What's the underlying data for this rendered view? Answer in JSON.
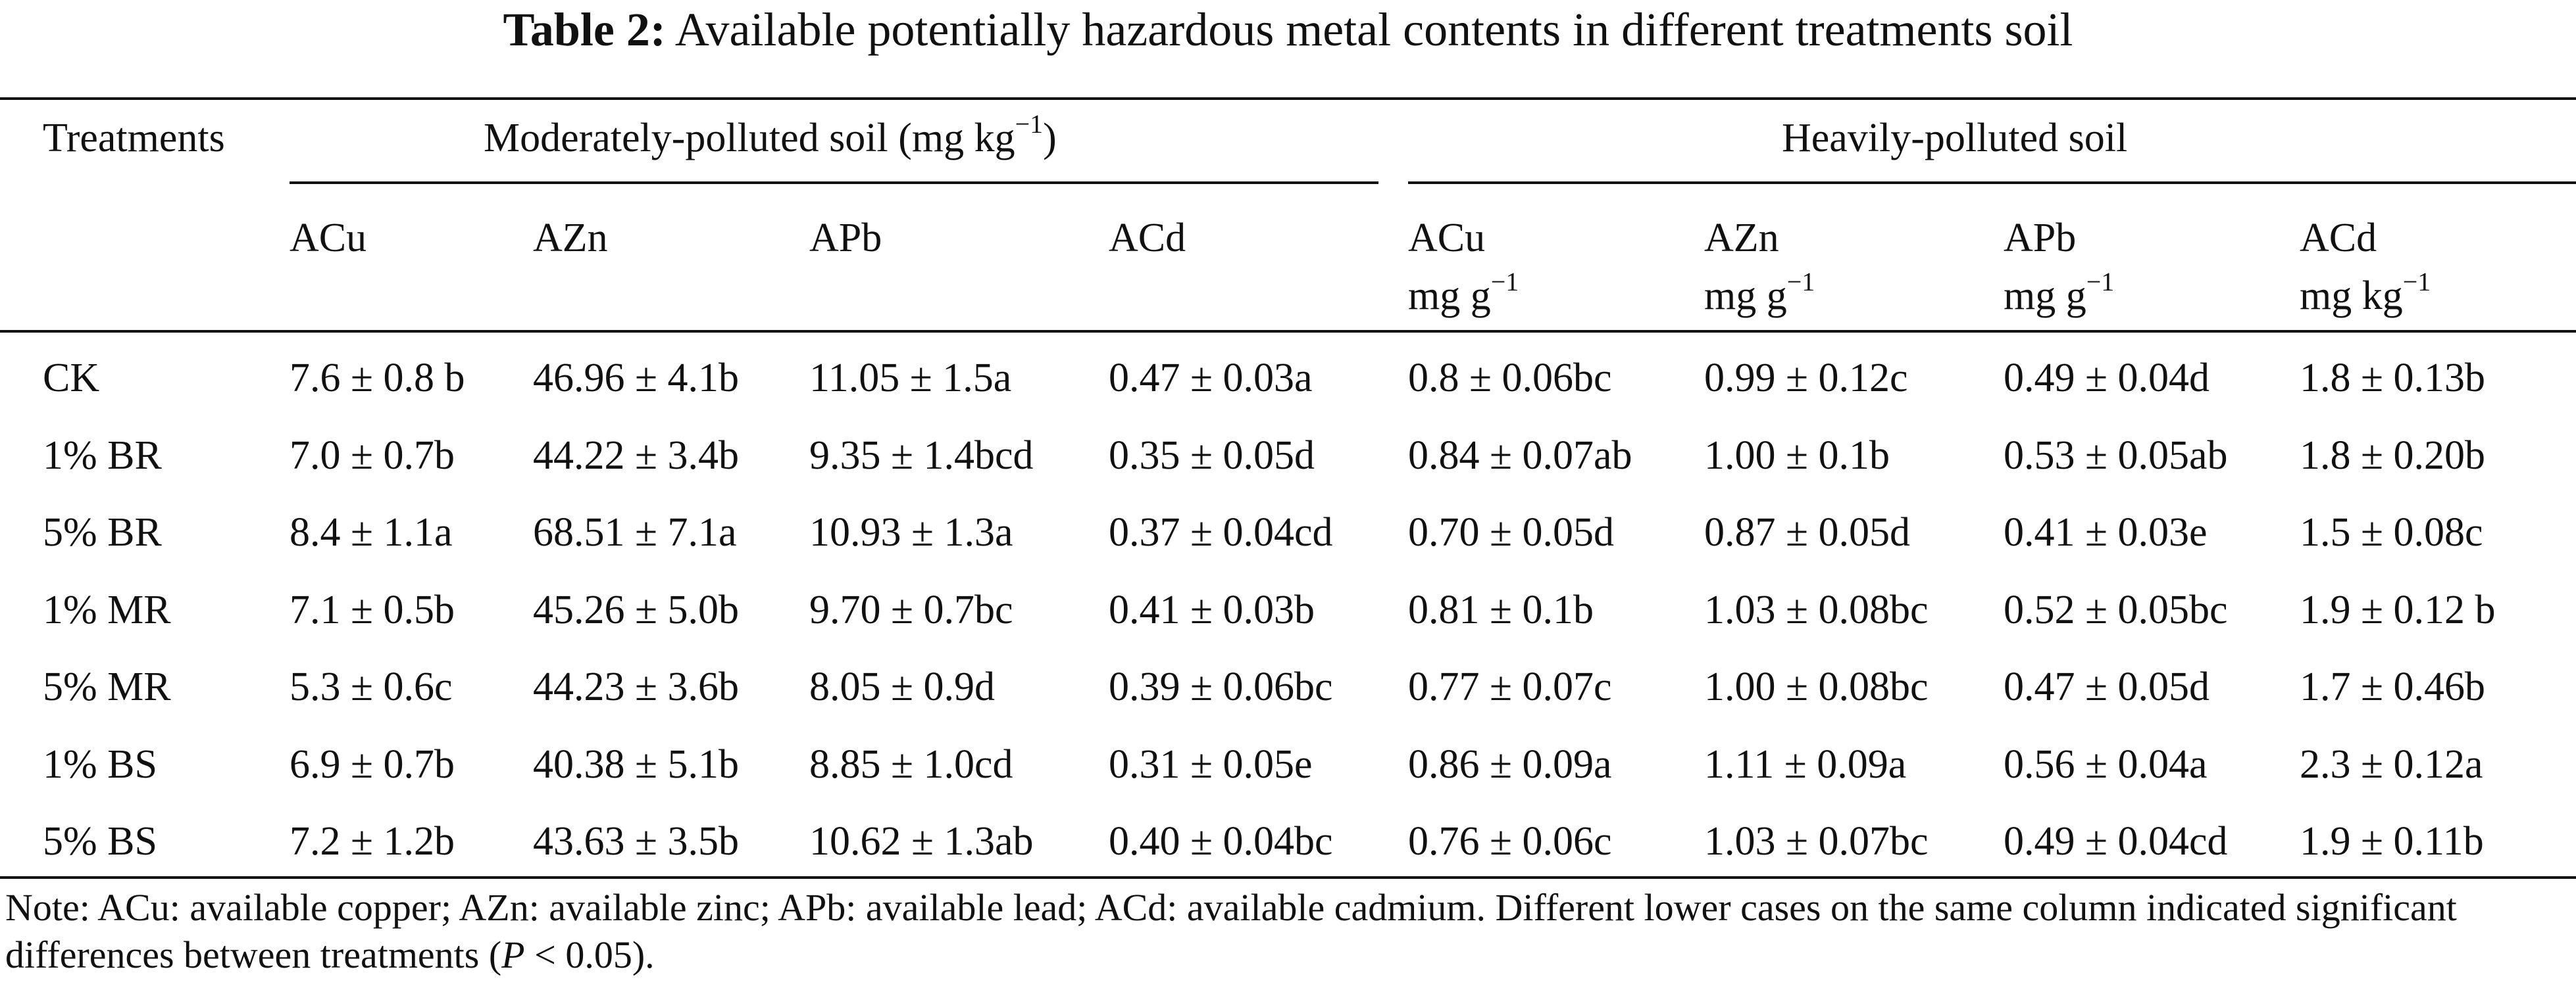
{
  "table": {
    "title_label": "Table 2:",
    "title_text": "Available potentially hazardous metal contents in different treatments soil",
    "header": {
      "treatments": "Treatments",
      "group1": "Moderately-polluted soil (mg kg",
      "group1_sup": "−1",
      "group1_close": ")",
      "group2": "Heavily-polluted soil",
      "columns": [
        {
          "name": "ACu",
          "unit": "",
          "unit_sup": ""
        },
        {
          "name": "AZn",
          "unit": "",
          "unit_sup": ""
        },
        {
          "name": "APb",
          "unit": "",
          "unit_sup": ""
        },
        {
          "name": "ACd",
          "unit": "",
          "unit_sup": ""
        },
        {
          "name": "ACu",
          "unit": "mg g",
          "unit_sup": "−1"
        },
        {
          "name": "AZn",
          "unit": "mg g",
          "unit_sup": "−1"
        },
        {
          "name": "APb",
          "unit": "mg g",
          "unit_sup": "−1"
        },
        {
          "name": "ACd",
          "unit": "mg kg",
          "unit_sup": "−1"
        }
      ]
    },
    "rows": [
      {
        "treatment": "CK",
        "values": [
          "7.6 ± 0.8 b",
          "46.96 ± 4.1b",
          "11.05 ± 1.5a",
          "0.47 ± 0.03a",
          "0.8 ± 0.06bc",
          "0.99 ± 0.12c",
          "0.49 ± 0.04d",
          "1.8 ± 0.13b"
        ]
      },
      {
        "treatment": "1% BR",
        "values": [
          "7.0 ± 0.7b",
          "44.22 ± 3.4b",
          "9.35 ± 1.4bcd",
          "0.35 ± 0.05d",
          "0.84 ± 0.07ab",
          "1.00 ± 0.1b",
          "0.53 ± 0.05ab",
          "1.8 ± 0.20b"
        ]
      },
      {
        "treatment": "5% BR",
        "values": [
          "8.4 ± 1.1a",
          "68.51 ± 7.1a",
          "10.93 ± 1.3a",
          "0.37 ± 0.04cd",
          "0.70 ± 0.05d",
          "0.87 ± 0.05d",
          "0.41 ± 0.03e",
          "1.5 ± 0.08c"
        ]
      },
      {
        "treatment": "1% MR",
        "values": [
          "7.1 ± 0.5b",
          "45.26 ± 5.0b",
          "9.70 ± 0.7bc",
          "0.41 ± 0.03b",
          "0.81 ± 0.1b",
          "1.03 ± 0.08bc",
          "0.52 ± 0.05bc",
          "1.9 ± 0.12 b"
        ]
      },
      {
        "treatment": "5% MR",
        "values": [
          "5.3 ± 0.6c",
          "44.23 ± 3.6b",
          "8.05 ± 0.9d",
          "0.39 ± 0.06bc",
          "0.77 ± 0.07c",
          "1.00 ± 0.08bc",
          "0.47 ± 0.05d",
          "1.7 ± 0.46b"
        ]
      },
      {
        "treatment": "1% BS",
        "values": [
          "6.9 ± 0.7b",
          "40.38 ± 5.1b",
          "8.85 ± 1.0cd",
          "0.31 ± 0.05e",
          "0.86 ± 0.09a",
          "1.11 ± 0.09a",
          "0.56 ± 0.04a",
          "2.3 ± 0.12a"
        ]
      },
      {
        "treatment": "5% BS",
        "values": [
          "7.2 ± 1.2b",
          "43.63 ± 3.5b",
          "10.62 ± 1.3ab",
          "0.40 ± 0.04bc",
          "0.76 ± 0.06c",
          "1.03 ± 0.07bc",
          "0.49 ± 0.04cd",
          "1.9 ± 0.11b"
        ]
      }
    ],
    "note_prefix": "Note: ACu: available copper; AZn: available zinc; APb: available lead; ACd: available cadmium. Different lower cases on the same column indicated significant differences between treatments (",
    "note_p": "P",
    "note_suffix": " < 0.05)."
  }
}
